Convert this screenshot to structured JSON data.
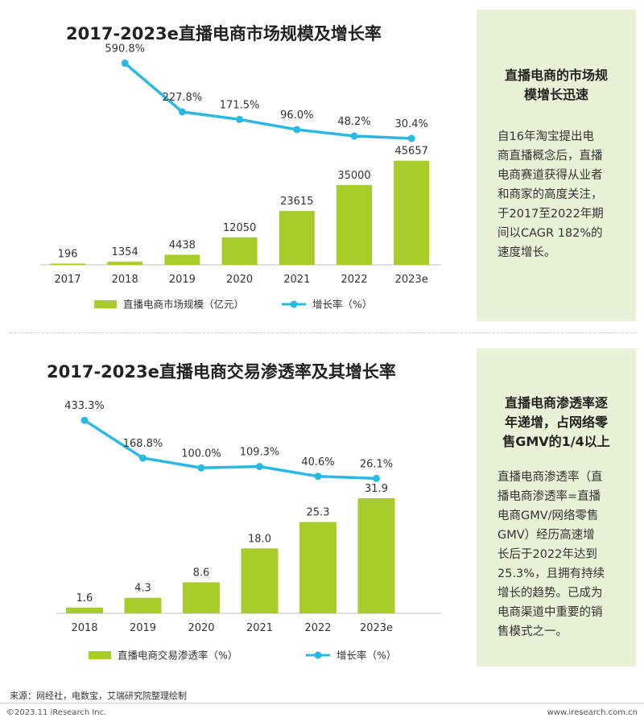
{
  "chart_data": [
    {
      "type": "bar",
      "title": "2017-2023e直播电商市场规模及增长率",
      "categories": [
        "2017",
        "2018",
        "2019",
        "2020",
        "2021",
        "2022",
        "2023e"
      ],
      "series": [
        {
          "name": "直播电商市场规模（亿元）",
          "type": "bar",
          "values": [
            196,
            1354,
            4438,
            12050,
            23615,
            35000,
            45657
          ],
          "value_labels": [
            "196",
            "1354",
            "4438",
            "12050",
            "23615",
            "35000",
            "45657"
          ],
          "color": "#a8cd2a"
        },
        {
          "name": "增长率（%）",
          "type": "line",
          "values": [
            null,
            590.8,
            227.8,
            171.5,
            96.0,
            48.2,
            30.4
          ],
          "value_labels": [
            "",
            "590.8%",
            "227.8%",
            "171.5%",
            "96.0%",
            "48.2%",
            "30.4%"
          ],
          "color": "#29b9e3"
        }
      ],
      "bar_ylim": [
        0,
        48000
      ],
      "line_ylim": [
        0,
        600
      ],
      "grid": false,
      "legend": "bottom",
      "panel": {
        "title": "直播电商的市场规模增长迅速",
        "title_lines": [
          "直播电商的市场规",
          "模增长迅速"
        ],
        "body": "自16年淘宝提出电商直播概念后，直播电商赛道获得从业者和商家的高度关注，于2017至2022年期间以CAGR 182%的速度增长。",
        "body_lines": [
          "自16年淘宝提出电",
          "商直播概念后，直播",
          "电商赛道获得从业者",
          "和商家的高度关注，",
          "于2017至2022年期",
          "间以CAGR 182%的",
          "速度增长。"
        ]
      }
    },
    {
      "type": "bar",
      "title": "2017-2023e直播电商交易渗透率及其增长率",
      "categories": [
        "2018",
        "2019",
        "2020",
        "2021",
        "2022",
        "2023e"
      ],
      "series": [
        {
          "name": "直播电商交易渗透率（%）",
          "type": "bar",
          "values": [
            1.6,
            4.3,
            8.6,
            18.0,
            25.3,
            31.9
          ],
          "value_labels": [
            "1.6",
            "4.3",
            "8.6",
            "18.0",
            "25.3",
            "31.9"
          ],
          "color": "#a8cd2a"
        },
        {
          "name": "增长率（%）",
          "type": "line",
          "values": [
            433.3,
            168.8,
            100.0,
            109.3,
            40.6,
            26.1
          ],
          "value_labels": [
            "433.3%",
            "168.8%",
            "100.0%",
            "109.3%",
            "40.6%",
            "26.1%"
          ],
          "color": "#29b9e3"
        }
      ],
      "bar_ylim": [
        0,
        33
      ],
      "line_ylim": [
        0,
        440
      ],
      "grid": false,
      "legend": "bottom",
      "panel": {
        "title": "直播电商渗透率逐年递增，占网络零售GMV的1/4以上",
        "title_lines": [
          "直播电商渗透率逐",
          "年递增，占网络零",
          "售GMV的1/4以上"
        ],
        "body": "直播电商渗透率（直播电商渗透率=直播电商GMV/网络零售GMV）经历高速增长后于2022年达到25.3%，且拥有持续增长的趋势。已成为电商渠道中重要的销售模式之一。",
        "body_lines": [
          "直播电商渗透率（直",
          "播电商渗透率=直播",
          "电商GMV/网络零售",
          "GMV）经历高速增",
          "长后于2022年达到",
          "25.3%，且拥有持续",
          "增长的趋势。已成为",
          "电商渠道中重要的销",
          "售模式之一。"
        ]
      }
    }
  ],
  "footer": {
    "source": "来源：网经社，电数宝，艾瑞研究院整理绘制",
    "copyright": "©2023.11 iResearch Inc.",
    "website": "www.iresearch.com.cn"
  }
}
